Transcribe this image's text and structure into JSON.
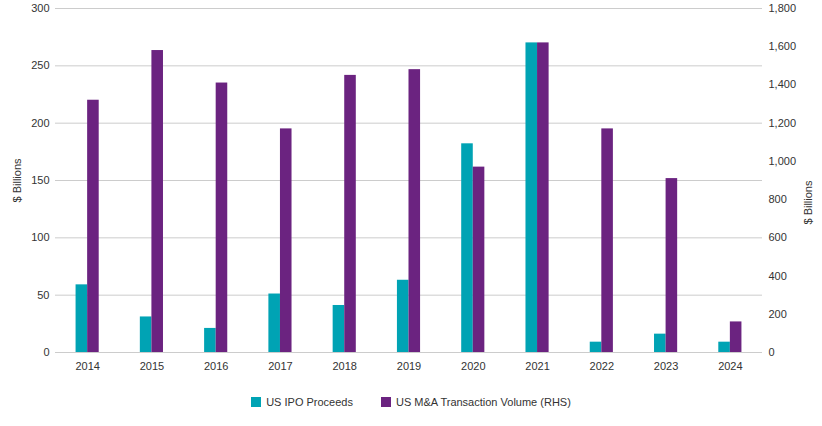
{
  "chart_data": {
    "type": "bar",
    "categories": [
      "2014",
      "2015",
      "2016",
      "2017",
      "2018",
      "2019",
      "2020",
      "2021",
      "2022",
      "2023",
      "2024"
    ],
    "series": [
      {
        "name": "US IPO Proceeds",
        "color": "#00a3b4",
        "values": [
          59,
          31,
          21,
          51,
          41,
          63,
          182,
          270,
          9,
          16,
          9
        ]
      },
      {
        "name": "US M&A Transaction Volume (RHS)",
        "color": "#6b2380",
        "axis": "y2",
        "values": [
          1320,
          1580,
          1410,
          1170,
          1450,
          1480,
          970,
          1620,
          1170,
          910,
          160
        ]
      }
    ],
    "ylabel": "$ Billions",
    "y2label": "$ Billions",
    "ylim": [
      0,
      300
    ],
    "yticks": [
      0,
      50,
      100,
      150,
      200,
      250,
      300
    ],
    "y2lim": [
      0,
      1800
    ],
    "y2ticks": [
      0,
      200,
      400,
      600,
      800,
      {
        "value": 1000,
        "label": "1,000"
      },
      {
        "value": 1200,
        "label": "1,200"
      },
      {
        "value": 1400,
        "label": "1,400"
      },
      {
        "value": 1600,
        "label": "1,600"
      },
      {
        "value": 1800,
        "label": "1,800"
      }
    ],
    "grid": true,
    "legend": "bottom"
  }
}
